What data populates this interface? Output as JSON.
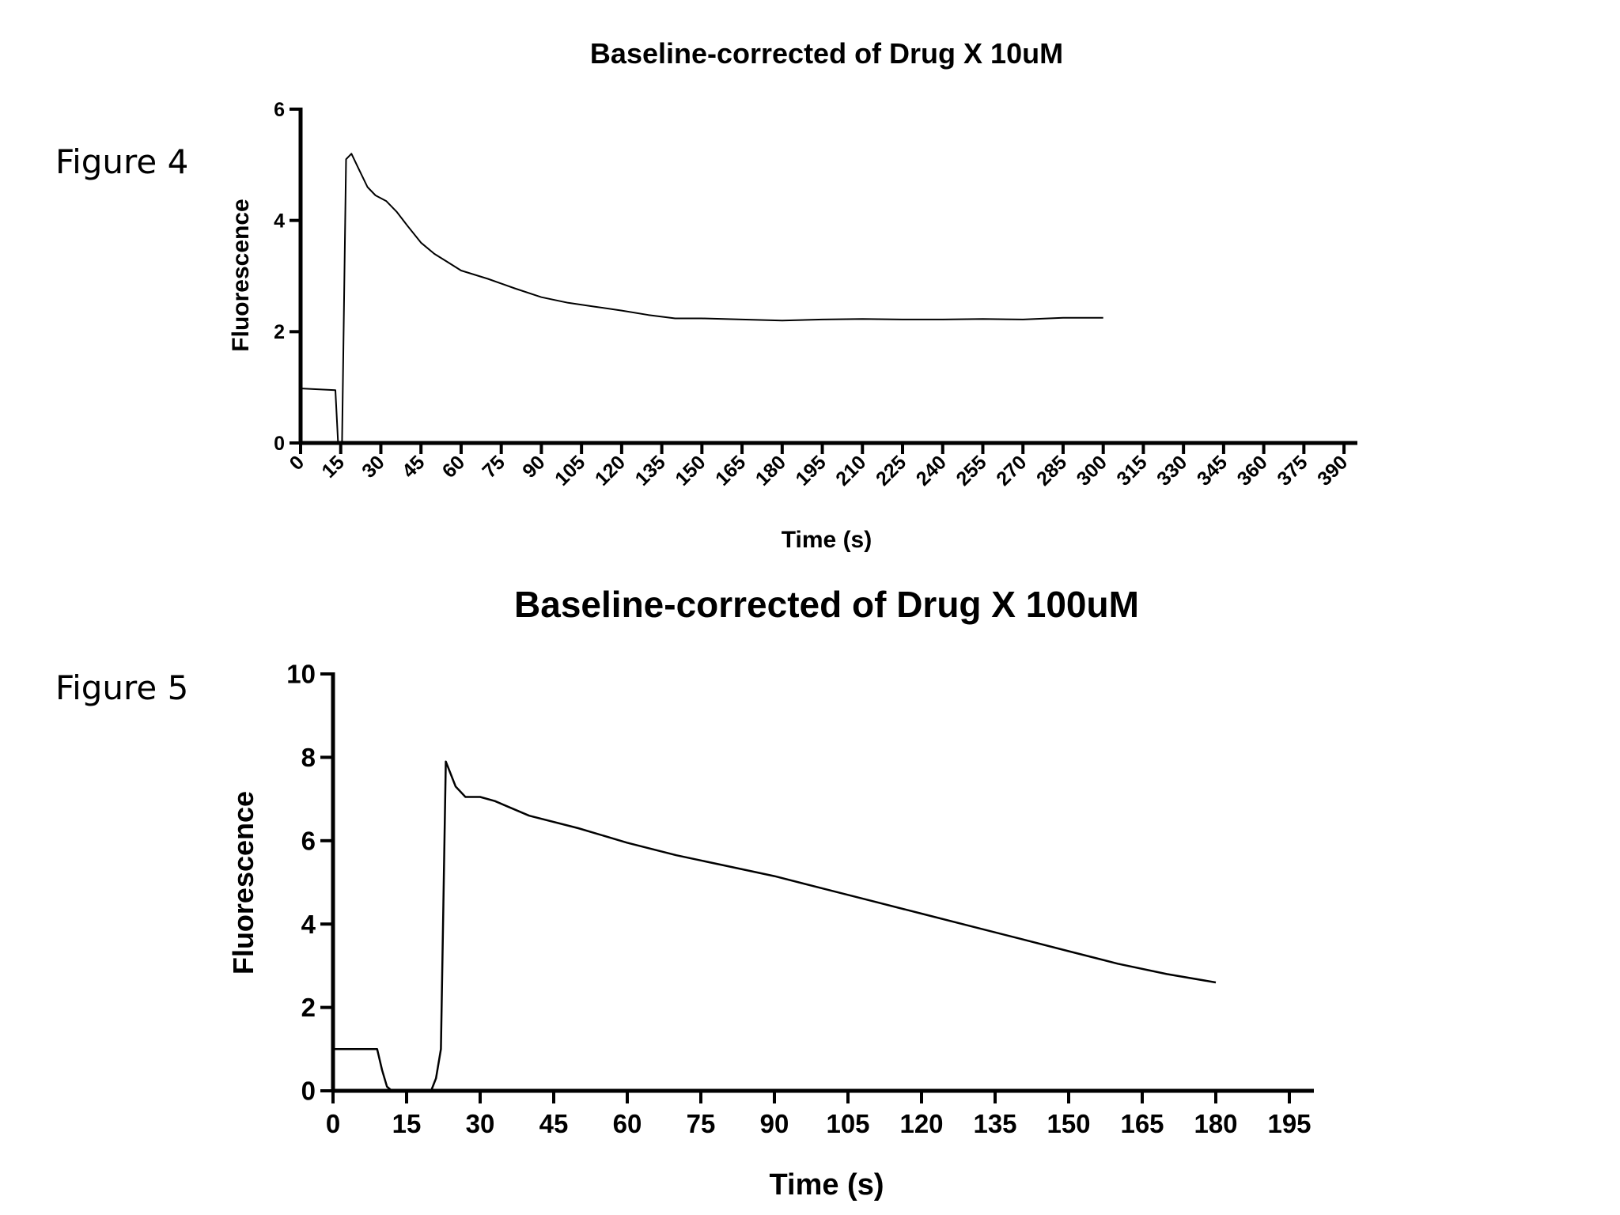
{
  "figures": [
    {
      "label": "Figure 4"
    },
    {
      "label": "Figure 5"
    }
  ],
  "chart_data": [
    {
      "type": "line",
      "title": "Baseline-corrected of Drug X 10uM",
      "xlabel": "Time (s)",
      "ylabel": "Fluorescence",
      "xlim": [
        0,
        395
      ],
      "ylim": [
        0,
        6
      ],
      "x_ticks": [
        0,
        15,
        30,
        45,
        60,
        75,
        90,
        105,
        120,
        135,
        150,
        165,
        180,
        195,
        210,
        225,
        240,
        255,
        270,
        285,
        300,
        315,
        330,
        345,
        360,
        375,
        390
      ],
      "y_ticks": [
        0,
        2,
        4,
        6
      ],
      "grid": false,
      "series": [
        {
          "x": [
            0,
            13,
            14,
            15.5,
            17,
            19,
            22,
            25,
            28,
            32,
            36,
            40,
            45,
            50,
            55,
            60,
            70,
            80,
            90,
            100,
            110,
            120,
            130,
            140,
            150,
            165,
            180,
            195,
            210,
            225,
            240,
            255,
            270,
            285,
            300
          ],
          "y": [
            0.98,
            0.95,
            0.0,
            0.0,
            5.1,
            5.2,
            4.9,
            4.6,
            4.45,
            4.35,
            4.15,
            3.9,
            3.6,
            3.4,
            3.25,
            3.1,
            2.95,
            2.78,
            2.62,
            2.52,
            2.45,
            2.38,
            2.3,
            2.24,
            2.24,
            2.22,
            2.2,
            2.22,
            2.23,
            2.22,
            2.22,
            2.23,
            2.22,
            2.25,
            2.25
          ]
        }
      ]
    },
    {
      "type": "line",
      "title": "Baseline-corrected of Drug X 100uM",
      "xlabel": "Time (s)",
      "ylabel": "Fluorescence",
      "xlim": [
        0,
        200
      ],
      "ylim": [
        0,
        10
      ],
      "x_ticks": [
        0,
        15,
        30,
        45,
        60,
        75,
        90,
        105,
        120,
        135,
        150,
        165,
        180,
        195
      ],
      "y_ticks": [
        0,
        2,
        4,
        6,
        8,
        10
      ],
      "grid": false,
      "series": [
        {
          "x": [
            0,
            9,
            10,
            11,
            12,
            15,
            20,
            21,
            22,
            23,
            24,
            25,
            27,
            30,
            33,
            40,
            50,
            60,
            70,
            80,
            90,
            100,
            110,
            120,
            130,
            140,
            150,
            160,
            170,
            180
          ],
          "y": [
            1.0,
            1.0,
            0.5,
            0.1,
            0.0,
            0.0,
            0.0,
            0.3,
            1.0,
            7.9,
            7.6,
            7.3,
            7.05,
            7.05,
            6.95,
            6.6,
            6.3,
            5.95,
            5.65,
            5.4,
            5.15,
            4.85,
            4.55,
            4.25,
            3.95,
            3.65,
            3.35,
            3.05,
            2.8,
            2.6
          ]
        }
      ]
    }
  ]
}
